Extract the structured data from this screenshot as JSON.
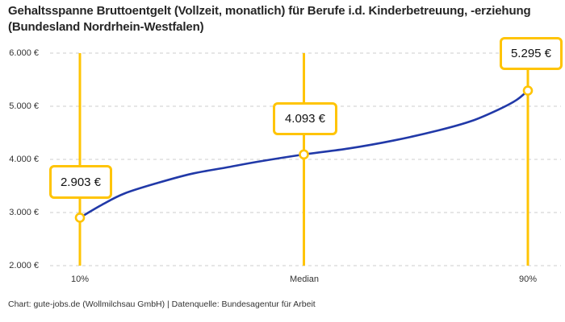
{
  "title": "Gehaltsspanne Bruttoentgelt (Vollzeit, monatlich) für Berufe i.d. Kinderbetreuung, -erziehung (Bundesland Nordrhein-Westfalen)",
  "footer": "Chart: gute-jobs.de (Wollmilchsau GmbH) | Datenquelle: Bundesagentur für Arbeit",
  "colors": {
    "accent_yellow": "#FFC404",
    "curve_blue": "#2139A8",
    "grid_gray": "#CCCCCC",
    "text_dark": "#111111",
    "text_muted": "#333333"
  },
  "chart_data": {
    "type": "line",
    "title": "Gehaltsspanne Bruttoentgelt (Vollzeit, monatlich) für Berufe i.d. Kinderbetreuung, -erziehung (Bundesland Nordrhein-Westfalen)",
    "xlabel": "",
    "ylabel": "",
    "ylim": [
      2000,
      6000
    ],
    "grid": true,
    "legend_position": "none",
    "y_tick_labels": [
      "6.000 €",
      "5.000 €",
      "4.000 €",
      "3.000 €",
      "2.000 €"
    ],
    "y_grid_values": [
      6000,
      5000,
      4000,
      3000,
      2000
    ],
    "x_tick_labels": [
      "10%",
      "Median",
      "90%"
    ],
    "points": [
      {
        "percentile": 10,
        "label": "10%",
        "value": 2903,
        "display": "2.903 €"
      },
      {
        "percentile": 50,
        "label": "Median",
        "value": 4093,
        "display": "4.093 €"
      },
      {
        "percentile": 90,
        "label": "90%",
        "value": 5295,
        "display": "5.295 €"
      }
    ],
    "curve_samples": [
      [
        10,
        2903
      ],
      [
        14,
        3150
      ],
      [
        18,
        3360
      ],
      [
        24,
        3560
      ],
      [
        30,
        3730
      ],
      [
        36,
        3845
      ],
      [
        42,
        3960
      ],
      [
        50,
        4093
      ],
      [
        58,
        4205
      ],
      [
        66,
        4355
      ],
      [
        74,
        4545
      ],
      [
        80,
        4725
      ],
      [
        85,
        4950
      ],
      [
        88,
        5120
      ],
      [
        90,
        5295
      ]
    ]
  }
}
